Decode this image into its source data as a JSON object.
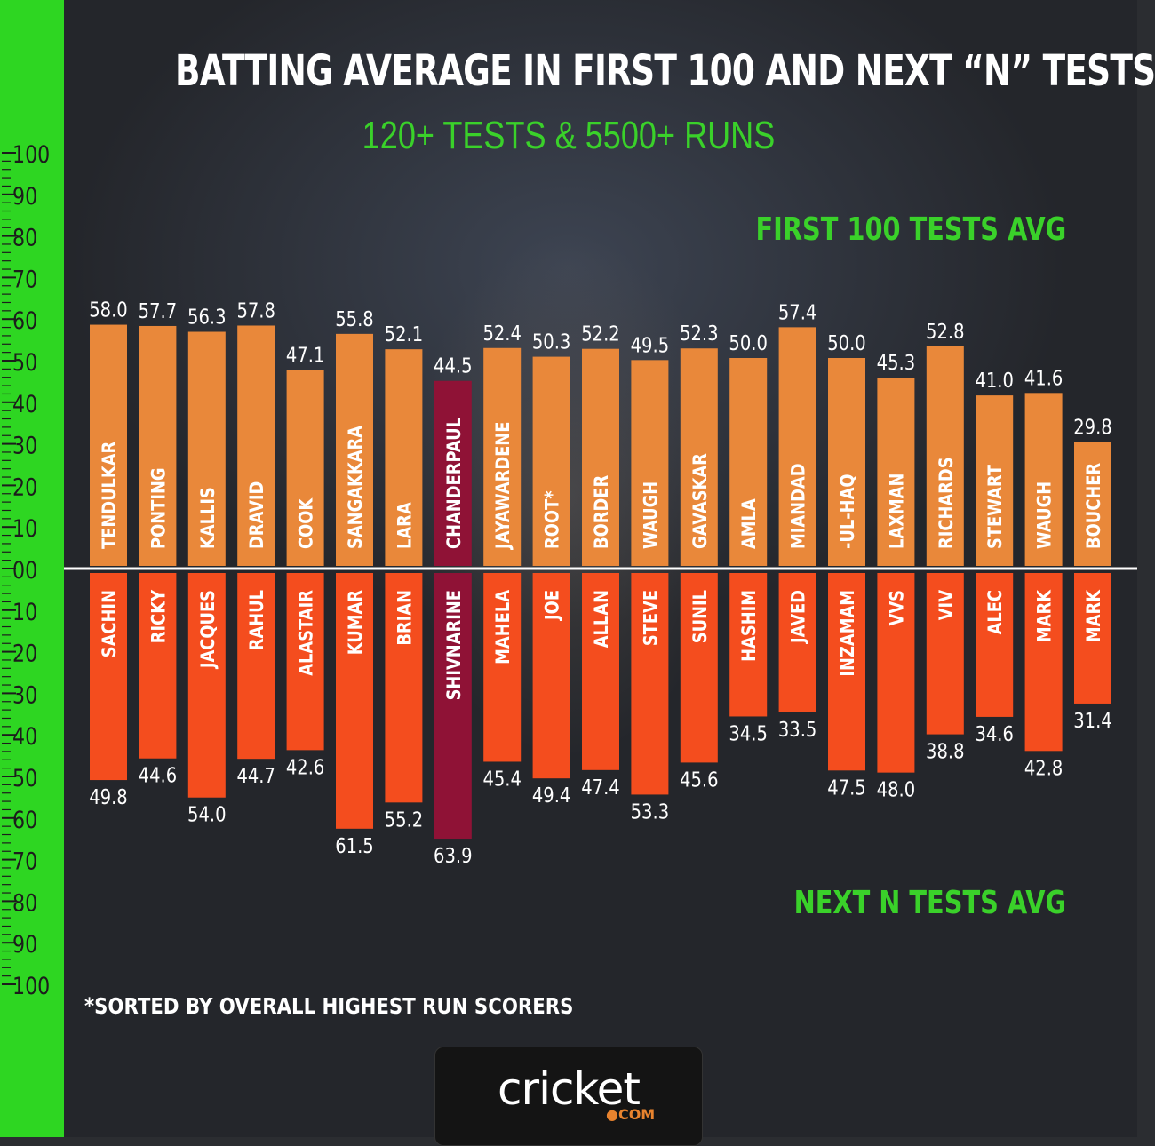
{
  "title": "BATTING AVERAGE IN FIRST 100 AND NEXT “N” TESTS",
  "subtitle": "120+ TESTS & 5500+ RUNS",
  "legend_top": "FIRST 100 TESTS AVG",
  "legend_bottom": "NEXT N TESTS AVG",
  "footnote": "*SORTED BY OVERALL HIGHEST RUN SCORERS",
  "logo": {
    "text": "cricket",
    "sub": "●COM"
  },
  "colors": {
    "first_bar": "#e9883a",
    "next_bar": "#f44d1e",
    "highlight_first": "#8f1236",
    "highlight_next": "#8f1236",
    "accent_green": "#3ad12a",
    "zero_line": "#ffffff"
  },
  "chart_data": {
    "type": "bar",
    "title": "BATTING AVERAGE IN FIRST 100 AND NEXT “N” TESTS",
    "subtitle": "120+ TESTS & 5500+ RUNS",
    "axis_labels": [
      "100",
      "90",
      "80",
      "70",
      "60",
      "50",
      "40",
      "30",
      "20",
      "10",
      "00",
      "10",
      "20",
      "30",
      "40",
      "50",
      "60",
      "70",
      "80",
      "90",
      "100"
    ],
    "ylim": [
      -100,
      100
    ],
    "highlight": "CHANDERPAUL",
    "categories": [
      "TENDULKAR",
      "PONTING",
      "KALLIS",
      "DRAVID",
      "COOK",
      "SANGAKKARA",
      "LARA",
      "CHANDERPAUL",
      "JAYAWARDENE",
      "ROOT*",
      "BORDER",
      "WAUGH",
      "GAVASKAR",
      "AMLA",
      "MIANDAD",
      "-UL-HAQ",
      "LAXMAN",
      "RICHARDS",
      "STEWART",
      "WAUGH",
      "BOUCHER"
    ],
    "first_names": [
      "SACHIN",
      "RICKY",
      "JACQUES",
      "RAHUL",
      "ALASTAIR",
      "KUMAR",
      "BRIAN",
      "SHIVNARINE",
      "MAHELA",
      "JOE",
      "ALLAN",
      "STEVE",
      "SUNIL",
      "HASHIM",
      "JAVED",
      "INZAMAM",
      "VVS",
      "VIV",
      "ALEC",
      "MARK",
      "MARK"
    ],
    "series": [
      {
        "name": "FIRST 100 TESTS AVG",
        "values": [
          58.0,
          57.7,
          56.3,
          57.8,
          47.1,
          55.8,
          52.1,
          44.5,
          52.4,
          50.3,
          52.2,
          49.5,
          52.3,
          50.0,
          57.4,
          50.0,
          45.3,
          52.8,
          41.0,
          41.6,
          29.8
        ]
      },
      {
        "name": "NEXT N TESTS AVG",
        "values": [
          49.8,
          44.6,
          54.0,
          44.7,
          42.6,
          61.5,
          55.2,
          63.9,
          45.4,
          49.4,
          47.4,
          53.3,
          45.6,
          34.5,
          33.5,
          47.5,
          48.0,
          38.8,
          34.6,
          42.8,
          31.4
        ]
      }
    ]
  }
}
